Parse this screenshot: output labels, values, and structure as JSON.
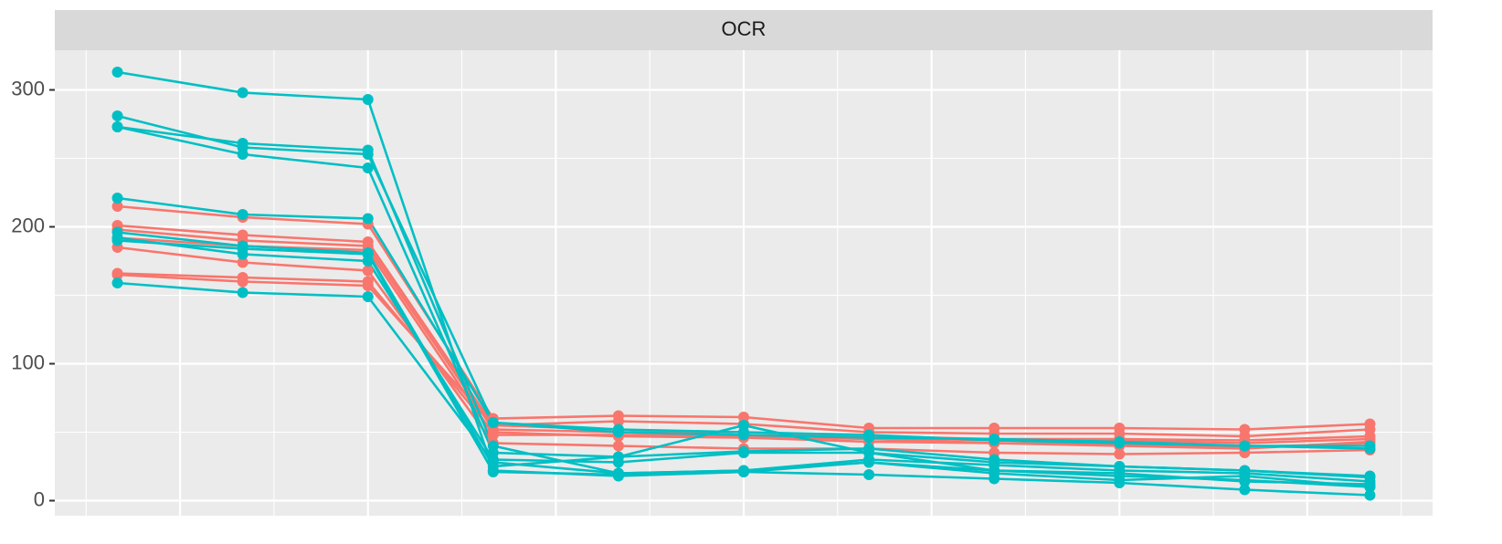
{
  "chart_data": {
    "type": "line",
    "title": "OCR",
    "x": [
      1,
      2,
      3,
      4,
      5,
      6,
      7,
      8,
      9,
      10,
      11
    ],
    "xlim": [
      0.5,
      11.5
    ],
    "xticks": [
      1.5,
      3,
      4.5,
      6,
      7.5,
      9,
      10.5
    ],
    "ylim": [
      -11,
      329
    ],
    "yticks": [
      0,
      100,
      200,
      300
    ],
    "grid": true,
    "series": [
      {
        "color": "#F8766D",
        "values": [
          215,
          207,
          202,
          60,
          62,
          61,
          53,
          53,
          53,
          52,
          56
        ]
      },
      {
        "color": "#F8766D",
        "values": [
          201,
          194,
          189,
          55,
          58,
          56,
          50,
          49,
          49,
          47,
          52
        ]
      },
      {
        "color": "#F8766D",
        "values": [
          198,
          190,
          186,
          52,
          50,
          48,
          46,
          44,
          44,
          42,
          45
        ]
      },
      {
        "color": "#F8766D",
        "values": [
          192,
          186,
          183,
          48,
          48,
          47,
          45,
          42,
          41,
          39,
          42
        ]
      },
      {
        "color": "#F8766D",
        "values": [
          185,
          174,
          168,
          42,
          40,
          38,
          38,
          35,
          34,
          35,
          37
        ]
      },
      {
        "color": "#F8766D",
        "values": [
          166,
          163,
          160,
          50,
          47,
          46,
          43,
          42,
          40,
          38,
          43
        ]
      },
      {
        "color": "#F8766D",
        "values": [
          165,
          160,
          157,
          55,
          52,
          48,
          47,
          45,
          45,
          44,
          47
        ]
      },
      {
        "color": "#00BFC4",
        "values": [
          313,
          298,
          293,
          22,
          18,
          21,
          28,
          22,
          18,
          15,
          10
        ]
      },
      {
        "color": "#00BFC4",
        "values": [
          281,
          258,
          253,
          57,
          52,
          50,
          48,
          44,
          42,
          40,
          40
        ]
      },
      {
        "color": "#00BFC4",
        "values": [
          273,
          261,
          256,
          40,
          20,
          22,
          30,
          26,
          22,
          20,
          14
        ]
      },
      {
        "color": "#00BFC4",
        "values": [
          273,
          253,
          243,
          35,
          32,
          36,
          38,
          30,
          25,
          22,
          18
        ]
      },
      {
        "color": "#00BFC4",
        "values": [
          221,
          209,
          206,
          57,
          50,
          48,
          46,
          45,
          43,
          40,
          38
        ]
      },
      {
        "color": "#00BFC4",
        "values": [
          196,
          186,
          181,
          25,
          32,
          55,
          35,
          28,
          25,
          22,
          17
        ]
      },
      {
        "color": "#00BFC4",
        "values": [
          192,
          180,
          175,
          30,
          28,
          35,
          35,
          22,
          20,
          14,
          12
        ]
      },
      {
        "color": "#00BFC4",
        "values": [
          190,
          184,
          180,
          21,
          19,
          21,
          19,
          16,
          13,
          8,
          4
        ]
      },
      {
        "color": "#00BFC4",
        "values": [
          159,
          152,
          149,
          28,
          20,
          22,
          28,
          20,
          15,
          18,
          10
        ]
      }
    ]
  }
}
